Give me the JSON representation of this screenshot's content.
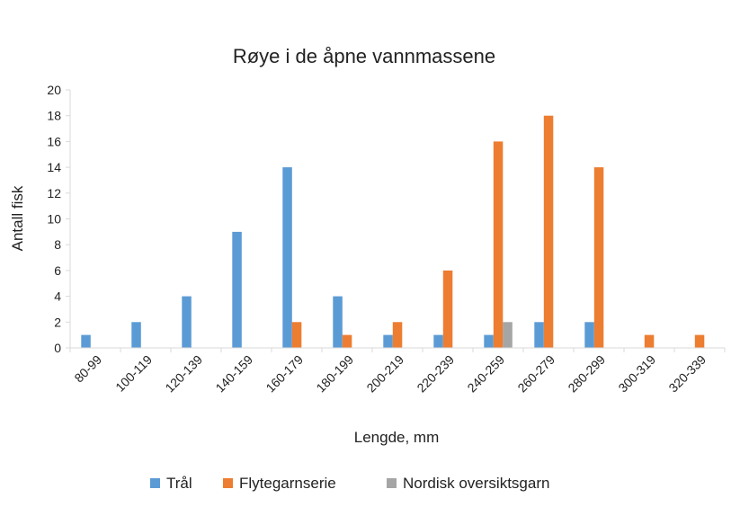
{
  "chart_data": {
    "type": "bar",
    "title": "Røye i de åpne vannmassene",
    "xlabel": "Lengde, mm",
    "ylabel": "Antall fisk",
    "ylim": [
      0,
      20
    ],
    "yticks": [
      0,
      2,
      4,
      6,
      8,
      10,
      12,
      14,
      16,
      18,
      20
    ],
    "grid": false,
    "legend_position": "bottom",
    "categories": [
      "80-99",
      "100-119",
      "120-139",
      "140-159",
      "160-179",
      "180-199",
      "200-219",
      "220-239",
      "240-259",
      "260-279",
      "280-299",
      "300-319",
      "320-339"
    ],
    "series": [
      {
        "name": "Trål",
        "color": "#5B9BD5",
        "values": [
          1,
          2,
          4,
          9,
          14,
          4,
          1,
          1,
          1,
          2,
          2,
          0,
          0
        ]
      },
      {
        "name": "Flytegarnserie",
        "color": "#ED7D31",
        "values": [
          0,
          0,
          0,
          0,
          2,
          1,
          2,
          6,
          16,
          18,
          14,
          1,
          1
        ]
      },
      {
        "name": "Nordisk oversiktsgarn",
        "color": "#A5A5A5",
        "values": [
          0,
          0,
          0,
          0,
          0,
          0,
          0,
          0,
          2,
          0,
          0,
          0,
          0
        ]
      }
    ]
  }
}
